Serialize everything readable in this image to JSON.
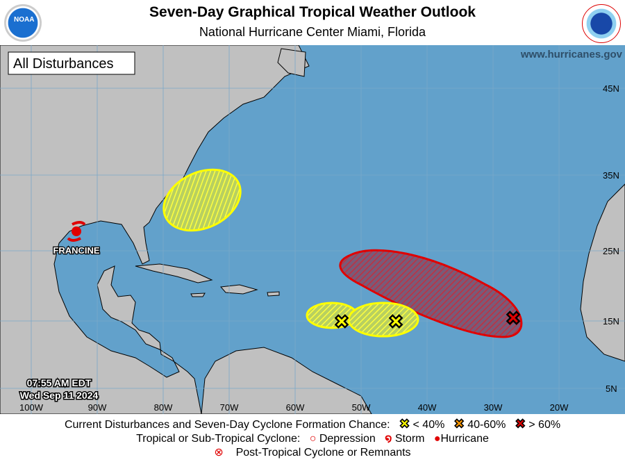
{
  "header": {
    "title": "Seven-Day Graphical Tropical Weather Outlook",
    "subtitle": "National Hurricane Center  Miami, Florida",
    "logo_left": "NOAA",
    "logo_right": "NATIONAL WEATHER SERVICE"
  },
  "map": {
    "panel_label": "All Disturbances",
    "website": "www.hurricanes.gov",
    "timestamp": {
      "time": "07:55 AM EDT",
      "date": "Wed Sep 11 2024"
    },
    "lon_labels": [
      "100W",
      "90W",
      "80W",
      "70W",
      "60W",
      "50W",
      "40W",
      "30W",
      "20W"
    ],
    "lat_labels": [
      "45N",
      "35N",
      "25N",
      "15N",
      "5N"
    ],
    "storm": {
      "name": "FRANCINE",
      "type": "Hurricane"
    },
    "disturbances": [
      {
        "chance": "< 40%",
        "color": "#ffff00"
      },
      {
        "chance": "< 40%",
        "color": "#ffff00"
      },
      {
        "chance": "< 40%",
        "color": "#ffff00"
      },
      {
        "chance": "> 60%",
        "color": "#e00000"
      }
    ],
    "colors": {
      "ocean": "#62a1cb",
      "land": "#c0c0c0"
    }
  },
  "legend": {
    "row1_label": "Current Disturbances and Seven-Day Cyclone Formation Chance:",
    "low": "< 40%",
    "mid": "40-60%",
    "high": "> 60%",
    "row2_label": "Tropical or Sub-Tropical Cyclone:",
    "depression": "Depression",
    "storm": "Storm",
    "hurricane": "Hurricane",
    "row3_label": "Post-Tropical Cyclone or Remnants",
    "colors": {
      "low": "#ffff00",
      "mid": "#ff9900",
      "high": "#e00000"
    }
  }
}
